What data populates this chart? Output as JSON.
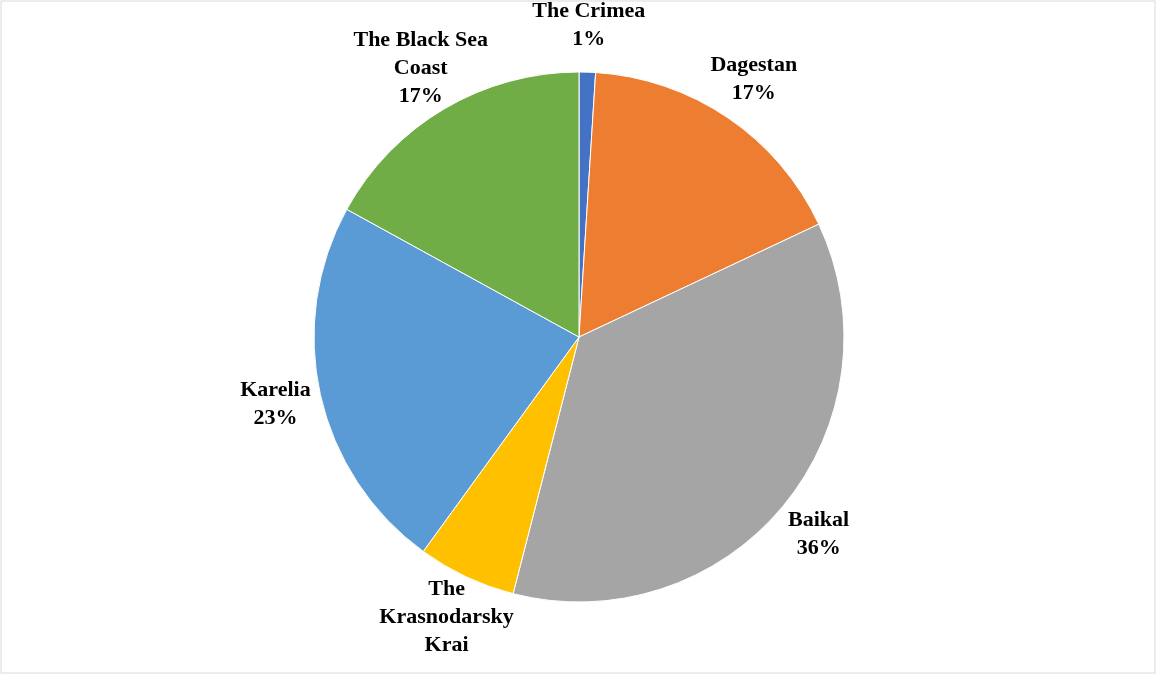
{
  "chart_data": {
    "type": "pie",
    "categories": [
      "The Crimea",
      "Dagestan",
      "Baikal",
      "The Krasnodarsky Krai",
      "Karelia",
      "The Black Sea Coast"
    ],
    "values": [
      1,
      17,
      36,
      6,
      23,
      17
    ],
    "value_labels": [
      "1%",
      "17%",
      "36%",
      null,
      "23%",
      "17%"
    ],
    "colors": [
      "#4472c4",
      "#ed7d31",
      "#a5a5a5",
      "#ffc000",
      "#5b9bd5",
      "#70ad47"
    ]
  }
}
